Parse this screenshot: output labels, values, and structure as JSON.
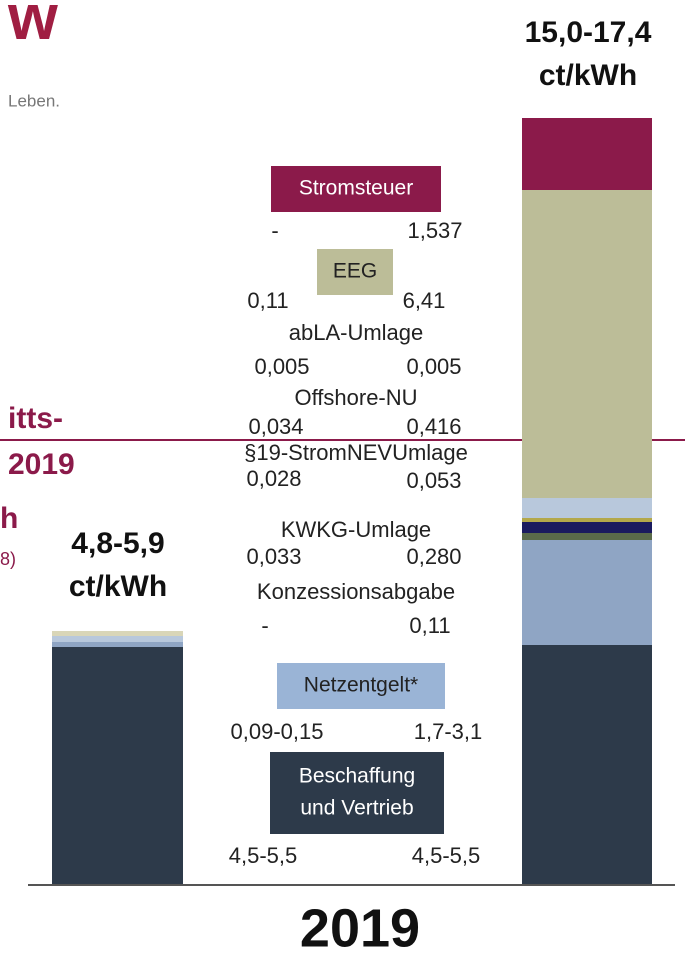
{
  "logo": {
    "mark": "w",
    "tagline": "Leben."
  },
  "left_fragment": [
    "itts-",
    "2019",
    "h",
    "8)"
  ],
  "left_total": [
    "4,8-5,9",
    "ct/kWh"
  ],
  "right_total": [
    "15,0-17,4",
    "ct/kWh"
  ],
  "components": [
    {
      "name": "Stromsteuer",
      "left": "-",
      "right": "1,537"
    },
    {
      "name": "EEG",
      "left": "0,11",
      "right": "6,41"
    },
    {
      "name": "abLA-Umlage",
      "left": "0,005",
      "right": "0,005"
    },
    {
      "name": "Offshore-NU",
      "left": "0,034",
      "right": "0,416"
    },
    {
      "name": "§19-StromNEVUmlage",
      "left": "0,028",
      "right": "0,053"
    },
    {
      "name": "KWKG-Umlage",
      "left": "0,033",
      "right": "0,280"
    },
    {
      "name": "Konzessionsabgabe",
      "left": "-",
      "right": "0,11"
    },
    {
      "name": "Netzentgelt*",
      "left": "0,09-0,15",
      "right": "1,7-3,1"
    },
    {
      "name": [
        "Beschaffung",
        "und Vertrieb"
      ],
      "left": "4,5-5,5",
      "right": "4,5-5,5"
    }
  ],
  "year": "2019"
}
